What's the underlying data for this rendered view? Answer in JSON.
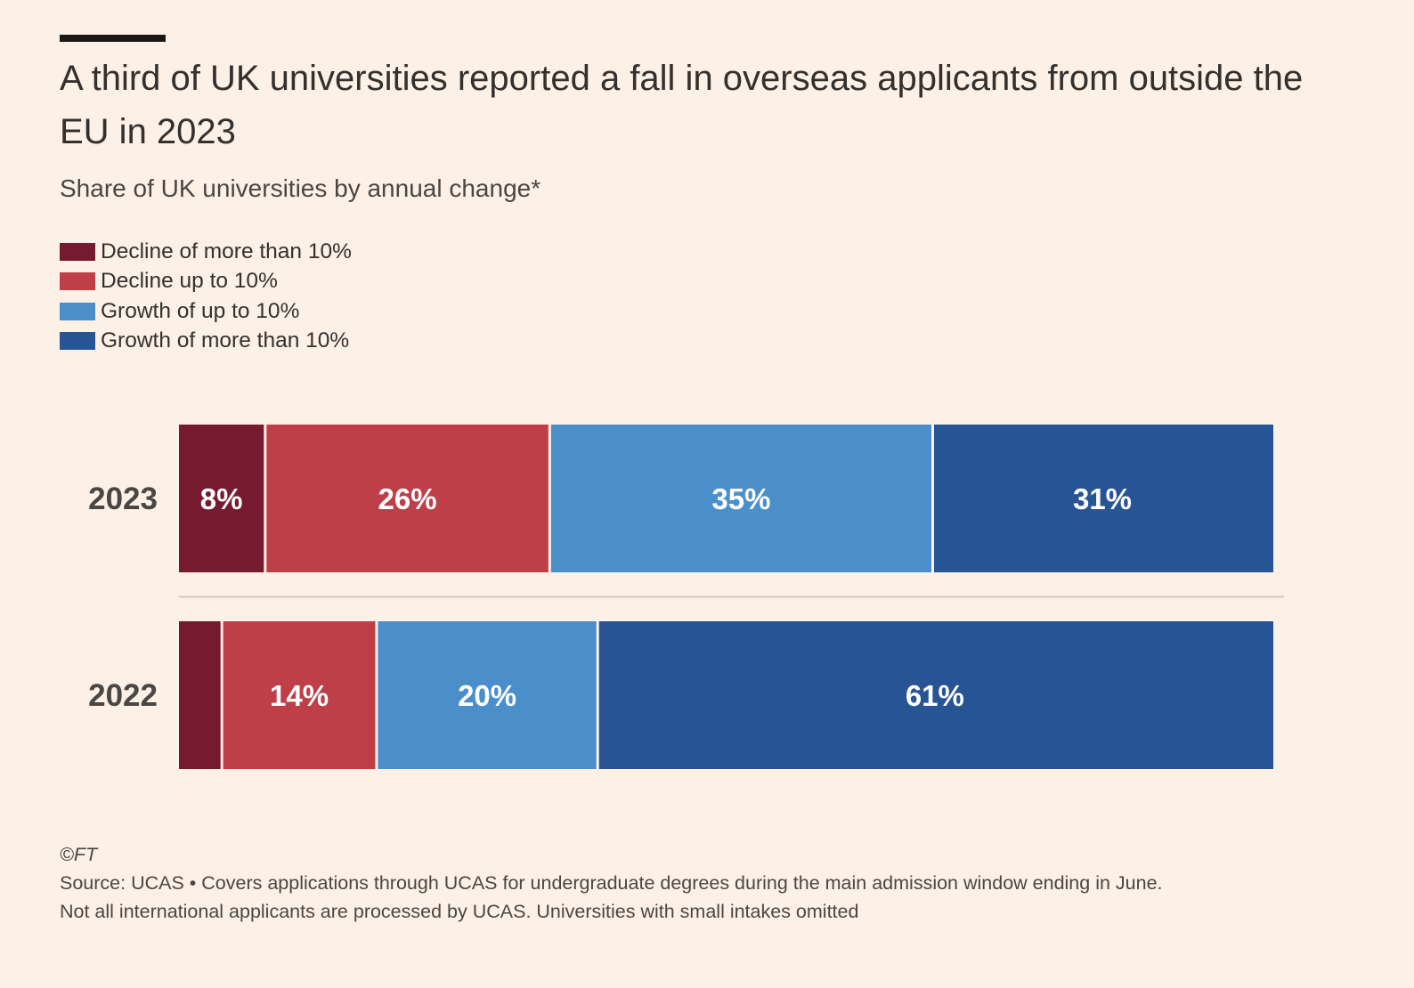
{
  "header": {
    "title": "A third of UK universities reported a fall in overseas applicants from outside the EU in 2023",
    "subtitle": "Share of UK universities by annual change*"
  },
  "legend": [
    {
      "label": "Decline of more than 10%",
      "color": "#761a2f"
    },
    {
      "label": "Decline up to 10%",
      "color": "#be3f48"
    },
    {
      "label": "Growth of up to 10%",
      "color": "#4a8fca"
    },
    {
      "label": "Growth of more than 10%",
      "color": "#265494"
    }
  ],
  "chart_data": {
    "type": "bar",
    "orientation": "horizontal",
    "stacked": true,
    "categories": [
      "2023",
      "2022"
    ],
    "series": [
      {
        "name": "Decline of more than 10%",
        "values": [
          8,
          4
        ],
        "labels": [
          "8%",
          ""
        ],
        "color": "#761a2f"
      },
      {
        "name": "Decline up to 10%",
        "values": [
          26,
          14
        ],
        "labels": [
          "26%",
          "14%"
        ],
        "color": "#be3f48"
      },
      {
        "name": "Growth of up to 10%",
        "values": [
          35,
          20
        ],
        "labels": [
          "35%",
          "20%"
        ],
        "color": "#4a8fca"
      },
      {
        "name": "Growth of more than 10%",
        "values": [
          31,
          61
        ],
        "labels": [
          "31%",
          "61%"
        ],
        "color": "#265494"
      }
    ],
    "title": "A third of UK universities reported a fall in overseas applicants from outside the EU in 2023",
    "subtitle": "Share of UK universities by annual change*",
    "xlim": [
      0,
      100
    ],
    "legend_position": "top-left",
    "grid": false
  },
  "footer": {
    "copyright": "©FT",
    "source_line1": "Source: UCAS • Covers applications through UCAS for undergraduate degrees during the main admission window ending in June.",
    "source_line2": "Not all international applicants are processed by UCAS. Universities with small intakes omitted"
  }
}
